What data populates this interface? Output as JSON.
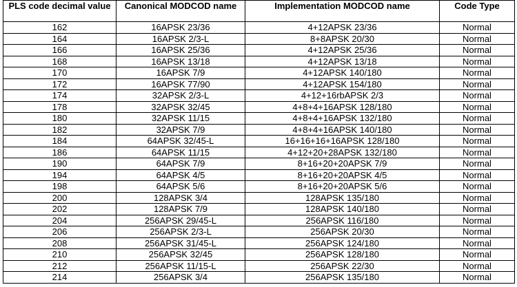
{
  "table": {
    "headers": [
      "PLS code decimal value",
      "Canonical MODCOD name",
      "Implementation MODCOD name",
      "Code Type"
    ],
    "rows": [
      [
        "162",
        "16APSK 23/36",
        "4+12APSK 23/36",
        "Normal"
      ],
      [
        "164",
        "16APSK 2/3-L",
        "8+8APSK 20/30",
        "Normal"
      ],
      [
        "166",
        "16APSK 25/36",
        "4+12APSK 25/36",
        "Normal"
      ],
      [
        "168",
        "16APSK 13/18",
        "4+12APSK 13/18",
        "Normal"
      ],
      [
        "170",
        "16APSK 7/9",
        "4+12APSK 140/180",
        "Normal"
      ],
      [
        "172",
        "16APSK 77/90",
        "4+12APSK 154/180",
        "Normal"
      ],
      [
        "174",
        "32APSK 2/3-L",
        "4+12+16rbAPSK 2/3",
        "Normal"
      ],
      [
        "178",
        "32APSK 32/45",
        "4+8+4+16APSK 128/180",
        "Normal"
      ],
      [
        "180",
        "32APSK 11/15",
        "4+8+4+16APSK 132/180",
        "Normal"
      ],
      [
        "182",
        "32APSK 7/9",
        "4+8+4+16APSK 140/180",
        "Normal"
      ],
      [
        "184",
        "64APSK 32/45-L",
        "16+16+16+16APSK 128/180",
        "Normal"
      ],
      [
        "186",
        "64APSK 11/15",
        "4+12+20+28APSK 132/180",
        "Normal"
      ],
      [
        "190",
        "64APSK 7/9",
        "8+16+20+20APSK 7/9",
        "Normal"
      ],
      [
        "194",
        "64APSK 4/5",
        "8+16+20+20APSK 4/5",
        "Normal"
      ],
      [
        "198",
        "64APSK 5/6",
        "8+16+20+20APSK 5/6",
        "Normal"
      ],
      [
        "200",
        "128APSK 3/4",
        "128APSK 135/180",
        "Normal"
      ],
      [
        "202",
        "128APSK 7/9",
        "128APSK 140/180",
        "Normal"
      ],
      [
        "204",
        "256APSK 29/45-L",
        "256APSK 116/180",
        "Normal"
      ],
      [
        "206",
        "256APSK 2/3-L",
        "256APSK 20/30",
        "Normal"
      ],
      [
        "208",
        "256APSK 31/45-L",
        "256APSK 124/180",
        "Normal"
      ],
      [
        "210",
        "256APSK 32/45",
        "256APSK 128/180",
        "Normal"
      ],
      [
        "212",
        "256APSK 11/15-L",
        "256APSK 22/30",
        "Normal"
      ],
      [
        "214",
        "256APSK 3/4",
        "256APSK 135/180",
        "Normal"
      ]
    ]
  }
}
